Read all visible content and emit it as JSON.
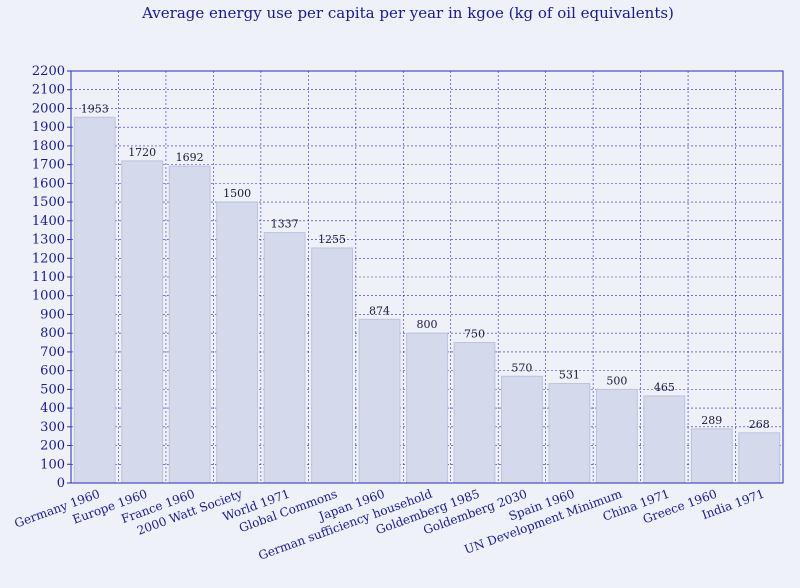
{
  "chart_data": {
    "type": "bar",
    "title": "Average energy use per capita per year in kgoe (kg of oil equivalents)",
    "xlabel": "",
    "ylabel": "",
    "ylim": [
      0,
      2200
    ],
    "ytick_step": 100,
    "grid": true,
    "categories": [
      "Germany 1960",
      "Europe 1960",
      "France 1960",
      "2000 Watt Society",
      "World 1971",
      "Global Commons",
      "Japan 1960",
      "German sufficiency household",
      "Goldemberg 1985",
      "Goldemberg 2030",
      "Spain 1960",
      "UN Development Minimum",
      "China 1971",
      "Greece 1960",
      "India 1971"
    ],
    "values": [
      1953,
      1720,
      1692,
      1500,
      1337,
      1255,
      874,
      800,
      750,
      570,
      531,
      500,
      465,
      289,
      268
    ],
    "colors": {
      "bar_fill": "#d4d9ec",
      "bar_stroke": "#bcc3dd",
      "grid": "#2b2bb8",
      "text": "#1a1a8c",
      "background": "#eef1f8"
    }
  }
}
